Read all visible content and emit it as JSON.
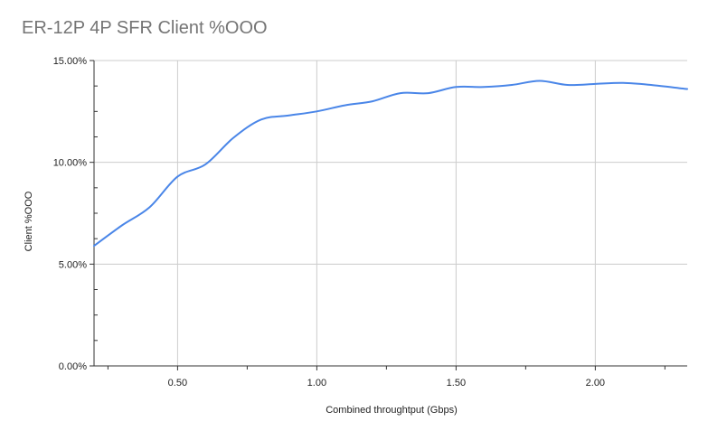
{
  "chart_data": {
    "type": "line",
    "title": "ER-12P 4P SFR Client %OOO",
    "xlabel": "Combined throughtput (Gbps)",
    "ylabel": "Client %OOO",
    "xlim": [
      0.2,
      2.33
    ],
    "ylim": [
      0,
      15
    ],
    "x_ticks": [
      {
        "value": 0.5,
        "label": "0.50"
      },
      {
        "value": 1.0,
        "label": "1.00"
      },
      {
        "value": 1.5,
        "label": "1.50"
      },
      {
        "value": 2.0,
        "label": "2.00"
      }
    ],
    "y_ticks": [
      {
        "value": 0,
        "label": "0.00%"
      },
      {
        "value": 5,
        "label": "5.00%"
      },
      {
        "value": 10,
        "label": "10.00%"
      },
      {
        "value": 15,
        "label": "15.00%"
      }
    ],
    "grid": true,
    "legend": "none",
    "series": [
      {
        "color": "#4a86e8",
        "x": [
          0.2,
          0.3,
          0.4,
          0.5,
          0.6,
          0.7,
          0.8,
          0.9,
          1.0,
          1.1,
          1.2,
          1.3,
          1.4,
          1.5,
          1.6,
          1.7,
          1.8,
          1.9,
          2.0,
          2.1,
          2.2,
          2.33
        ],
        "y": [
          5.9,
          6.9,
          7.8,
          9.3,
          9.9,
          11.2,
          12.1,
          12.3,
          12.5,
          12.8,
          13.0,
          13.4,
          13.4,
          13.7,
          13.7,
          13.8,
          14.0,
          13.8,
          13.85,
          13.9,
          13.8,
          13.6
        ]
      }
    ]
  }
}
